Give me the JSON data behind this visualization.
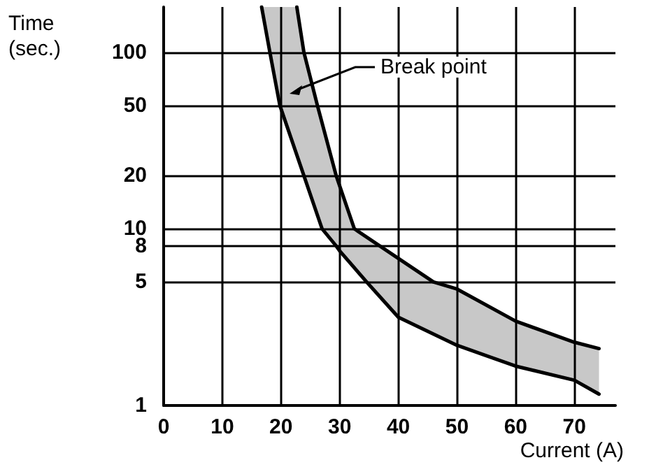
{
  "chart_data": {
    "type": "line",
    "xlabel": "Current (A)",
    "ylabel": "Time\n(sec.)",
    "log": "y",
    "xlim": [
      0,
      77
    ],
    "ylim": [
      1,
      180
    ],
    "xticks": [
      0,
      10,
      20,
      30,
      40,
      50,
      60,
      70
    ],
    "yticks": [
      1,
      5,
      8,
      10,
      20,
      50,
      100
    ],
    "grid": true,
    "marker": "none",
    "line_style": "solid",
    "series": [
      {
        "color": "#000000",
        "x": [
          16.7,
          18.1,
          19.8,
          23.9,
          27,
          29.4,
          30,
          34.6,
          40,
          50,
          60,
          70,
          74.2
        ],
        "values": [
          180,
          100,
          50,
          20,
          10,
          8,
          7.5,
          5,
          3.16,
          2.19,
          1.67,
          1.39,
          1.16
        ]
      },
      {
        "color": "#000000",
        "x": [
          22.7,
          23.9,
          26.2,
          29.4,
          32.5,
          40,
          46,
          50,
          60,
          70,
          74.2
        ],
        "values": [
          180,
          100,
          50,
          20,
          10,
          6.8,
          5,
          4.56,
          3.0,
          2.28,
          2.1
        ]
      }
    ],
    "annotations": [
      "Break point"
    ]
  }
}
